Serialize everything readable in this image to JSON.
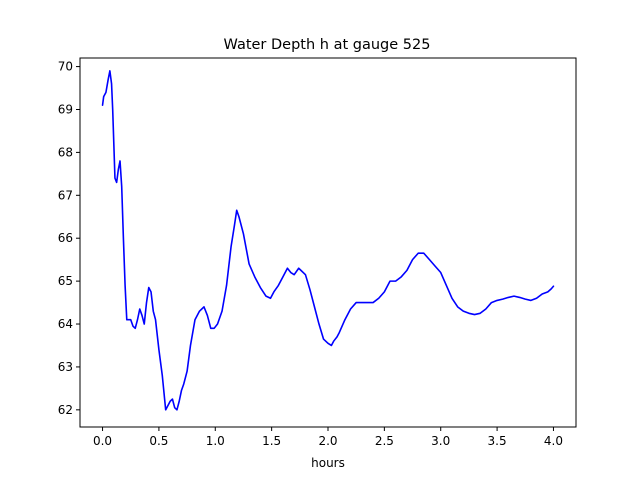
{
  "chart_data": {
    "type": "line",
    "title": "Water Depth h at gauge 525",
    "xlabel": "hours",
    "ylabel": "",
    "xlim": [
      -0.2,
      4.2
    ],
    "ylim": [
      61.6,
      70.2
    ],
    "xticks": [
      0.0,
      0.5,
      1.0,
      1.5,
      2.0,
      2.5,
      3.0,
      3.5,
      4.0
    ],
    "xtick_labels": [
      "0.0",
      "0.5",
      "1.0",
      "1.5",
      "2.0",
      "2.5",
      "3.0",
      "3.5",
      "4.0"
    ],
    "yticks": [
      62,
      63,
      64,
      65,
      66,
      67,
      68,
      69,
      70
    ],
    "ytick_labels": [
      "62",
      "63",
      "64",
      "65",
      "66",
      "67",
      "68",
      "69",
      "70"
    ],
    "grid": false,
    "series": [
      {
        "color": "#0000ff",
        "x": [
          0.0,
          0.01,
          0.03,
          0.05,
          0.065,
          0.08,
          0.09,
          0.1,
          0.11,
          0.125,
          0.14,
          0.155,
          0.17,
          0.185,
          0.2,
          0.215,
          0.23,
          0.25,
          0.27,
          0.29,
          0.31,
          0.33,
          0.35,
          0.37,
          0.39,
          0.41,
          0.43,
          0.45,
          0.47,
          0.5,
          0.53,
          0.56,
          0.6,
          0.62,
          0.64,
          0.66,
          0.68,
          0.7,
          0.72,
          0.75,
          0.78,
          0.82,
          0.86,
          0.9,
          0.93,
          0.96,
          0.99,
          1.02,
          1.06,
          1.1,
          1.14,
          1.17,
          1.19,
          1.21,
          1.25,
          1.3,
          1.35,
          1.4,
          1.45,
          1.49,
          1.52,
          1.56,
          1.6,
          1.64,
          1.67,
          1.7,
          1.74,
          1.76,
          1.8,
          1.84,
          1.88,
          1.92,
          1.96,
          2.0,
          2.03,
          2.05,
          2.08,
          2.1,
          2.15,
          2.2,
          2.25,
          2.3,
          2.35,
          2.4,
          2.45,
          2.5,
          2.55,
          2.6,
          2.65,
          2.7,
          2.75,
          2.8,
          2.85,
          2.9,
          2.95,
          3.0,
          3.05,
          3.1,
          3.15,
          3.2,
          3.25,
          3.3,
          3.35,
          3.4,
          3.45,
          3.5,
          3.55,
          3.6,
          3.65,
          3.7,
          3.75,
          3.8,
          3.85,
          3.9,
          3.95,
          3.98,
          4.0
        ],
        "y": [
          69.1,
          69.3,
          69.4,
          69.7,
          69.9,
          69.6,
          69.0,
          68.2,
          67.4,
          67.3,
          67.6,
          67.8,
          67.2,
          66.0,
          64.9,
          64.1,
          64.1,
          64.1,
          63.95,
          63.9,
          64.1,
          64.35,
          64.2,
          64.0,
          64.5,
          64.85,
          64.75,
          64.3,
          64.1,
          63.4,
          62.8,
          62.0,
          62.2,
          62.25,
          62.05,
          62.0,
          62.2,
          62.45,
          62.6,
          62.9,
          63.5,
          64.1,
          64.3,
          64.4,
          64.2,
          63.9,
          63.9,
          64.0,
          64.3,
          64.9,
          65.8,
          66.3,
          66.65,
          66.5,
          66.1,
          65.4,
          65.1,
          64.85,
          64.65,
          64.6,
          64.75,
          64.9,
          65.1,
          65.3,
          65.2,
          65.15,
          65.3,
          65.25,
          65.15,
          64.8,
          64.4,
          64.0,
          63.65,
          63.55,
          63.5,
          63.6,
          63.7,
          63.8,
          64.1,
          64.35,
          64.5,
          64.5,
          64.5,
          64.5,
          64.6,
          64.75,
          65.0,
          65.0,
          65.1,
          65.25,
          65.5,
          65.65,
          65.65,
          65.5,
          65.35,
          65.2,
          64.9,
          64.6,
          64.4,
          64.3,
          64.25,
          64.22,
          64.25,
          64.35,
          64.5,
          64.55,
          64.58,
          64.62,
          64.65,
          64.62,
          64.58,
          64.55,
          64.6,
          64.7,
          64.75,
          64.82,
          64.88
        ]
      }
    ]
  }
}
